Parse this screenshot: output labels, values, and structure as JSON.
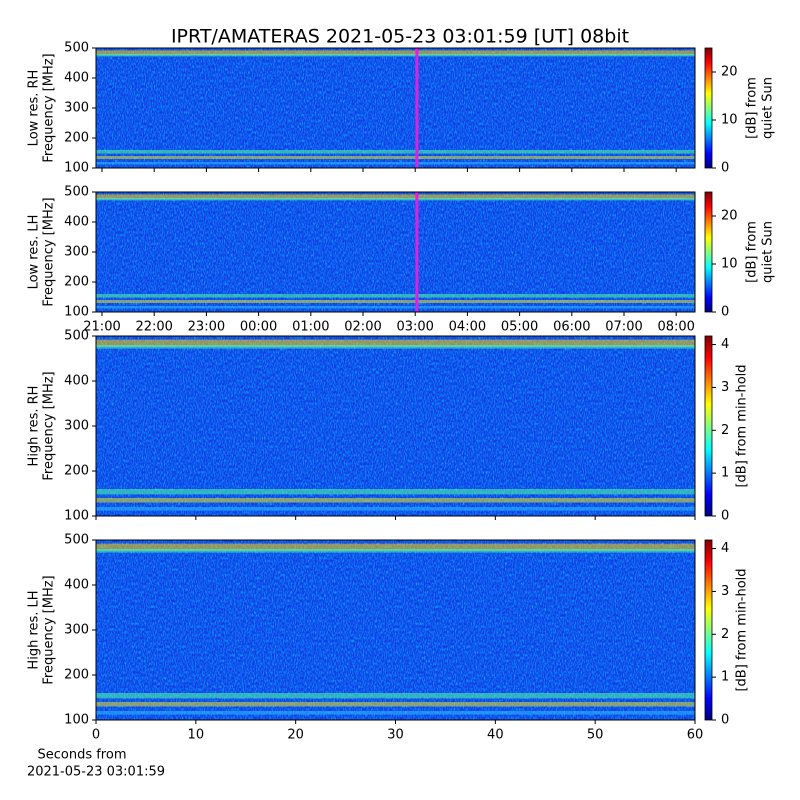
{
  "chart_data": [
    {
      "type": "spectrogram",
      "title": "IPRT/AMATERAS 2021-05-23 03:01:59 [UT]   08bit",
      "ylabel": [
        "Low res. RH",
        "Frequency [MHz]"
      ],
      "ylim": [
        100,
        500
      ],
      "yticks": [
        100,
        200,
        300,
        400,
        500
      ],
      "xlim": [
        20.885,
        32.36
      ],
      "xticks": [
        21,
        22,
        23,
        24,
        25,
        26,
        27,
        28,
        29,
        30,
        31,
        32
      ],
      "xticklabels": false,
      "marker": {
        "x": 27.033,
        "color": "#e020e0"
      },
      "colormap": "jet",
      "colorbar": {
        "label": [
          "[dB] from",
          "quiet Sun"
        ],
        "lim": [
          0,
          25
        ],
        "ticks": [
          0,
          10,
          20
        ]
      }
    },
    {
      "type": "spectrogram",
      "ylabel": [
        "Low res. LH",
        "Frequency [MHz]"
      ],
      "ylim": [
        100,
        500
      ],
      "yticks": [
        100,
        200,
        300,
        400,
        500
      ],
      "xlim": [
        20.885,
        32.36
      ],
      "xticks": [
        {
          "value": 21,
          "label": "21:00"
        },
        {
          "value": 22,
          "label": "22:00"
        },
        {
          "value": 23,
          "label": "23:00"
        },
        {
          "value": 24,
          "label": "00:00"
        },
        {
          "value": 25,
          "label": "01:00"
        },
        {
          "value": 26,
          "label": "02:00"
        },
        {
          "value": 27,
          "label": "03:00"
        },
        {
          "value": 28,
          "label": "04:00"
        },
        {
          "value": 29,
          "label": "05:00"
        },
        {
          "value": 30,
          "label": "06:00"
        },
        {
          "value": 31,
          "label": "07:00"
        },
        {
          "value": 32,
          "label": "08:00"
        }
      ],
      "xticklabels": true,
      "marker": {
        "x": 27.033,
        "color": "#e020e0"
      },
      "colormap": "jet",
      "colorbar": {
        "label": [
          "[dB] from",
          "quiet Sun"
        ],
        "lim": [
          0,
          25
        ],
        "ticks": [
          0,
          10,
          20
        ]
      }
    },
    {
      "type": "spectrogram",
      "ylabel": [
        "High res. RH",
        "Frequency [MHz]"
      ],
      "ylim": [
        100,
        500
      ],
      "yticks": [
        100,
        200,
        300,
        400,
        500
      ],
      "xlim": [
        0,
        60
      ],
      "xticks": [
        0,
        10,
        20,
        30,
        40,
        50,
        60
      ],
      "xticklabels": false,
      "colormap": "jet",
      "colorbar": {
        "label": [
          "[dB] from min-hold"
        ],
        "lim": [
          0,
          4.2
        ],
        "ticks": [
          0,
          1,
          2,
          3,
          4
        ]
      }
    },
    {
      "type": "spectrogram",
      "ylabel": [
        "High res. LH",
        "Frequency [MHz]"
      ],
      "ylim": [
        100,
        500
      ],
      "yticks": [
        100,
        200,
        300,
        400,
        500
      ],
      "xlim": [
        0,
        60
      ],
      "xticks": [
        0,
        10,
        20,
        30,
        40,
        50,
        60
      ],
      "xticklabels": true,
      "xlabel": [
        "Seconds from",
        "2021-05-23 03:01:59"
      ],
      "colormap": "jet",
      "colorbar": {
        "label": [
          "[dB] from min-hold"
        ],
        "lim": [
          0,
          4.2
        ],
        "ticks": [
          0,
          1,
          2,
          3,
          4
        ]
      }
    }
  ]
}
